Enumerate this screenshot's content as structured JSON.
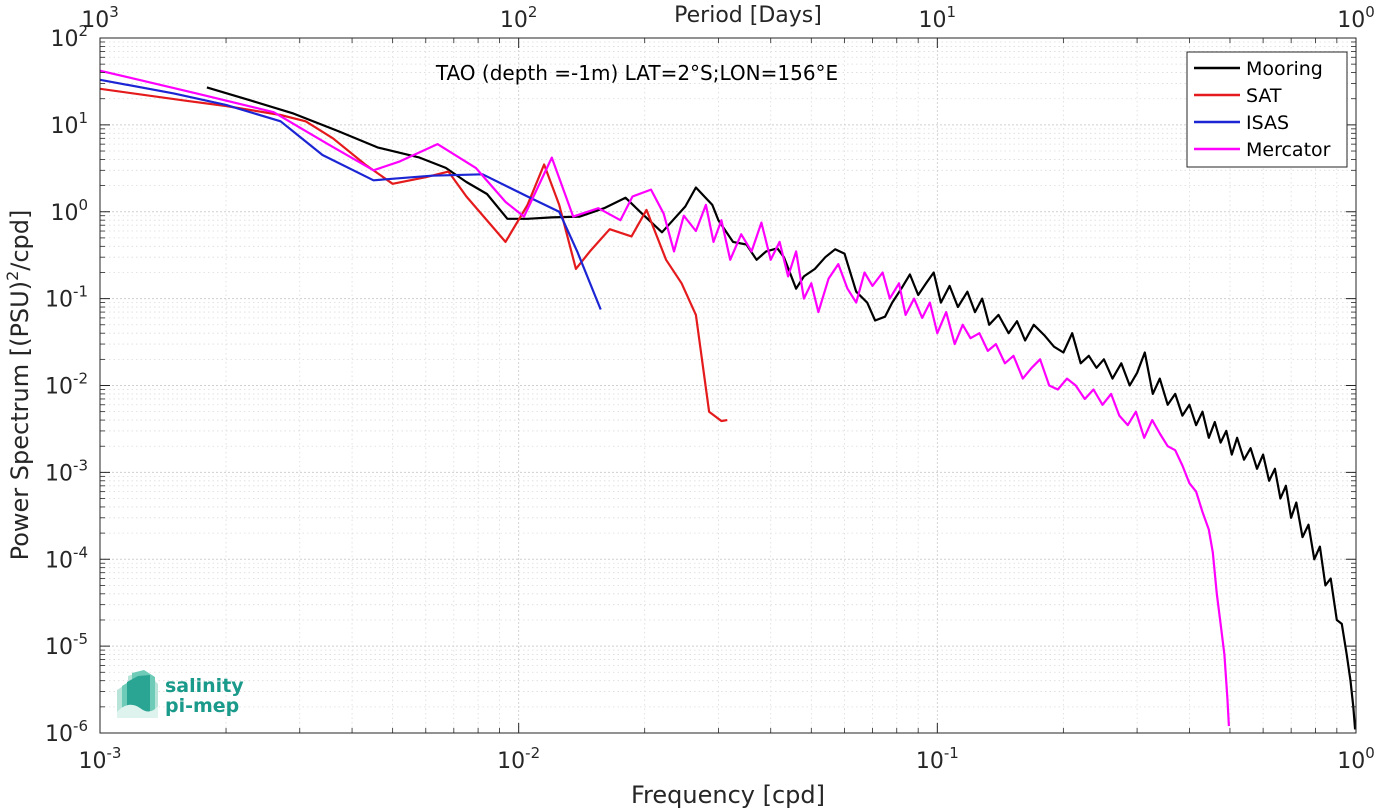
{
  "chart_data": {
    "type": "line",
    "title": "TAO (depth =-1m) LAT=2°S;LON=156°E",
    "xlabel": "Frequency [cpd]",
    "ylabel": "Power Spectrum [(PSU)^2/cpd]",
    "top_xlabel": "Period [Days]",
    "xscale": "log",
    "yscale": "log",
    "xlim": [
      0.001,
      1
    ],
    "ylim": [
      1e-06,
      100
    ],
    "x_ticks": [
      {
        "value": 0.001,
        "base": "10",
        "exp": "-3"
      },
      {
        "value": 0.01,
        "base": "10",
        "exp": "-2"
      },
      {
        "value": 0.1,
        "base": "10",
        "exp": "-1"
      },
      {
        "value": 1,
        "base": "10",
        "exp": "0"
      }
    ],
    "y_ticks": [
      {
        "value": 1e-06,
        "base": "10",
        "exp": "-6"
      },
      {
        "value": 1e-05,
        "base": "10",
        "exp": "-5"
      },
      {
        "value": 0.0001,
        "base": "10",
        "exp": "-4"
      },
      {
        "value": 0.001,
        "base": "10",
        "exp": "-3"
      },
      {
        "value": 0.01,
        "base": "10",
        "exp": "-2"
      },
      {
        "value": 0.1,
        "base": "10",
        "exp": "-1"
      },
      {
        "value": 1,
        "base": "10",
        "exp": "0"
      },
      {
        "value": 10,
        "base": "10",
        "exp": "1"
      },
      {
        "value": 100,
        "base": "10",
        "exp": "2"
      }
    ],
    "top_ticks": [
      {
        "freq": 0.001,
        "base": "10",
        "exp": "3"
      },
      {
        "freq": 0.01,
        "base": "10",
        "exp": "2"
      },
      {
        "freq": 0.1,
        "base": "10",
        "exp": "1"
      },
      {
        "freq": 1,
        "base": "10",
        "exp": "0"
      }
    ],
    "grid": true,
    "legend_position": "top-right",
    "series": [
      {
        "name": "Mooring",
        "color": "#000000",
        "points": [
          [
            0.0018,
            27
          ],
          [
            0.0023,
            19
          ],
          [
            0.0029,
            13.5
          ],
          [
            0.0037,
            8.5
          ],
          [
            0.0046,
            5.5
          ],
          [
            0.0058,
            4.2
          ],
          [
            0.0067,
            3.2
          ],
          [
            0.0075,
            2.2
          ],
          [
            0.0084,
            1.6
          ],
          [
            0.0094,
            0.83
          ],
          [
            0.0105,
            0.83
          ],
          [
            0.012,
            0.86
          ],
          [
            0.014,
            0.88
          ],
          [
            0.016,
            1.1
          ],
          [
            0.018,
            1.45
          ],
          [
            0.0195,
            1.0
          ],
          [
            0.022,
            0.58
          ],
          [
            0.025,
            1.15
          ],
          [
            0.0265,
            1.9
          ],
          [
            0.029,
            1.2
          ],
          [
            0.03,
            0.8
          ],
          [
            0.0325,
            0.45
          ],
          [
            0.035,
            0.42
          ],
          [
            0.037,
            0.28
          ],
          [
            0.039,
            0.35
          ],
          [
            0.0415,
            0.38
          ],
          [
            0.043,
            0.3
          ],
          [
            0.046,
            0.13
          ],
          [
            0.048,
            0.18
          ],
          [
            0.051,
            0.22
          ],
          [
            0.054,
            0.3
          ],
          [
            0.057,
            0.37
          ],
          [
            0.06,
            0.33
          ],
          [
            0.064,
            0.12
          ],
          [
            0.068,
            0.09
          ],
          [
            0.071,
            0.056
          ],
          [
            0.075,
            0.062
          ],
          [
            0.078,
            0.09
          ],
          [
            0.082,
            0.13
          ],
          [
            0.086,
            0.19
          ],
          [
            0.09,
            0.11
          ],
          [
            0.094,
            0.15
          ],
          [
            0.098,
            0.2
          ],
          [
            0.102,
            0.09
          ],
          [
            0.107,
            0.14
          ],
          [
            0.112,
            0.08
          ],
          [
            0.118,
            0.12
          ],
          [
            0.123,
            0.07
          ],
          [
            0.128,
            0.1
          ],
          [
            0.133,
            0.05
          ],
          [
            0.14,
            0.065
          ],
          [
            0.148,
            0.04
          ],
          [
            0.155,
            0.055
          ],
          [
            0.162,
            0.033
          ],
          [
            0.17,
            0.05
          ],
          [
            0.18,
            0.038
          ],
          [
            0.19,
            0.028
          ],
          [
            0.2,
            0.024
          ],
          [
            0.21,
            0.04
          ],
          [
            0.22,
            0.018
          ],
          [
            0.23,
            0.022
          ],
          [
            0.24,
            0.016
          ],
          [
            0.25,
            0.02
          ],
          [
            0.262,
            0.012
          ],
          [
            0.275,
            0.018
          ],
          [
            0.288,
            0.01
          ],
          [
            0.3,
            0.014
          ],
          [
            0.313,
            0.024
          ],
          [
            0.327,
            0.008
          ],
          [
            0.34,
            0.012
          ],
          [
            0.355,
            0.006
          ],
          [
            0.37,
            0.008
          ],
          [
            0.385,
            0.0045
          ],
          [
            0.4,
            0.006
          ],
          [
            0.415,
            0.0035
          ],
          [
            0.43,
            0.005
          ],
          [
            0.445,
            0.0025
          ],
          [
            0.46,
            0.0038
          ],
          [
            0.475,
            0.0022
          ],
          [
            0.49,
            0.003
          ],
          [
            0.505,
            0.0016
          ],
          [
            0.52,
            0.0025
          ],
          [
            0.54,
            0.0014
          ],
          [
            0.56,
            0.0019
          ],
          [
            0.58,
            0.0011
          ],
          [
            0.6,
            0.0016
          ],
          [
            0.62,
            0.0008
          ],
          [
            0.64,
            0.0011
          ],
          [
            0.66,
            0.0005
          ],
          [
            0.68,
            0.0007
          ],
          [
            0.7,
            0.0003
          ],
          [
            0.72,
            0.00045
          ],
          [
            0.745,
            0.00018
          ],
          [
            0.77,
            0.00025
          ],
          [
            0.795,
            0.0001
          ],
          [
            0.82,
            0.00014
          ],
          [
            0.845,
            5e-05
          ],
          [
            0.87,
            6e-05
          ],
          [
            0.9,
            2e-05
          ],
          [
            0.925,
            1.8e-05
          ],
          [
            0.95,
            8e-06
          ],
          [
            0.97,
            4e-06
          ],
          [
            0.985,
            2e-06
          ],
          [
            0.995,
            1.1e-06
          ]
        ]
      },
      {
        "name": "SAT",
        "color": "#e41a1c",
        "points": [
          [
            0.001,
            26
          ],
          [
            0.0016,
            19
          ],
          [
            0.002,
            16.5
          ],
          [
            0.0027,
            13
          ],
          [
            0.0031,
            11
          ],
          [
            0.0036,
            7
          ],
          [
            0.0043,
            3.5
          ],
          [
            0.005,
            2.1
          ],
          [
            0.006,
            2.5
          ],
          [
            0.0068,
            2.9
          ],
          [
            0.0075,
            1.5
          ],
          [
            0.0093,
            0.45
          ],
          [
            0.0105,
            1.2
          ],
          [
            0.0115,
            3.5
          ],
          [
            0.0125,
            1.2
          ],
          [
            0.0137,
            0.22
          ],
          [
            0.0148,
            0.35
          ],
          [
            0.0165,
            0.63
          ],
          [
            0.0186,
            0.52
          ],
          [
            0.0202,
            1.05
          ],
          [
            0.0225,
            0.28
          ],
          [
            0.0245,
            0.15
          ],
          [
            0.0265,
            0.065
          ],
          [
            0.0285,
            0.005
          ],
          [
            0.0305,
            0.0039
          ],
          [
            0.0315,
            0.004
          ]
        ]
      },
      {
        "name": "ISAS",
        "color": "#1c25d4",
        "points": [
          [
            0.001,
            33
          ],
          [
            0.0015,
            23
          ],
          [
            0.002,
            17
          ],
          [
            0.0027,
            11
          ],
          [
            0.0034,
            4.5
          ],
          [
            0.0045,
            2.3
          ],
          [
            0.0062,
            2.6
          ],
          [
            0.0082,
            2.7
          ],
          [
            0.0105,
            1.5
          ],
          [
            0.0125,
            1.0
          ],
          [
            0.0138,
            0.35
          ],
          [
            0.0152,
            0.11
          ],
          [
            0.0157,
            0.075
          ]
        ]
      },
      {
        "name": "Mercator",
        "color": "#ff00ff",
        "points": [
          [
            0.001,
            42
          ],
          [
            0.0017,
            23
          ],
          [
            0.0026,
            14
          ],
          [
            0.0035,
            6
          ],
          [
            0.0045,
            3.0
          ],
          [
            0.0052,
            3.8
          ],
          [
            0.0064,
            6.0
          ],
          [
            0.0079,
            3.2
          ],
          [
            0.0093,
            1.3
          ],
          [
            0.0103,
            0.88
          ],
          [
            0.012,
            4.2
          ],
          [
            0.0135,
            0.88
          ],
          [
            0.0155,
            1.1
          ],
          [
            0.0175,
            0.8
          ],
          [
            0.0187,
            1.5
          ],
          [
            0.0207,
            1.8
          ],
          [
            0.0222,
            0.95
          ],
          [
            0.0235,
            0.35
          ],
          [
            0.0248,
            0.9
          ],
          [
            0.0265,
            0.6
          ],
          [
            0.028,
            1.2
          ],
          [
            0.0292,
            0.45
          ],
          [
            0.0305,
            0.8
          ],
          [
            0.032,
            0.28
          ],
          [
            0.034,
            0.55
          ],
          [
            0.036,
            0.35
          ],
          [
            0.038,
            0.75
          ],
          [
            0.04,
            0.28
          ],
          [
            0.042,
            0.45
          ],
          [
            0.044,
            0.18
          ],
          [
            0.046,
            0.35
          ],
          [
            0.048,
            0.1
          ],
          [
            0.05,
            0.15
          ],
          [
            0.052,
            0.07
          ],
          [
            0.055,
            0.17
          ],
          [
            0.058,
            0.25
          ],
          [
            0.061,
            0.13
          ],
          [
            0.064,
            0.09
          ],
          [
            0.067,
            0.2
          ],
          [
            0.07,
            0.14
          ],
          [
            0.074,
            0.2
          ],
          [
            0.077,
            0.1
          ],
          [
            0.081,
            0.15
          ],
          [
            0.084,
            0.065
          ],
          [
            0.088,
            0.1
          ],
          [
            0.092,
            0.06
          ],
          [
            0.096,
            0.09
          ],
          [
            0.1,
            0.04
          ],
          [
            0.105,
            0.07
          ],
          [
            0.11,
            0.03
          ],
          [
            0.115,
            0.05
          ],
          [
            0.12,
            0.035
          ],
          [
            0.126,
            0.04
          ],
          [
            0.132,
            0.025
          ],
          [
            0.138,
            0.03
          ],
          [
            0.145,
            0.018
          ],
          [
            0.152,
            0.022
          ],
          [
            0.16,
            0.012
          ],
          [
            0.168,
            0.016
          ],
          [
            0.176,
            0.02
          ],
          [
            0.185,
            0.01
          ],
          [
            0.194,
            0.009
          ],
          [
            0.204,
            0.012
          ],
          [
            0.214,
            0.01
          ],
          [
            0.225,
            0.007
          ],
          [
            0.236,
            0.009
          ],
          [
            0.248,
            0.006
          ],
          [
            0.26,
            0.008
          ],
          [
            0.272,
            0.0045
          ],
          [
            0.285,
            0.0035
          ],
          [
            0.298,
            0.005
          ],
          [
            0.312,
            0.0025
          ],
          [
            0.326,
            0.004
          ],
          [
            0.34,
            0.0028
          ],
          [
            0.355,
            0.002
          ],
          [
            0.37,
            0.0018
          ],
          [
            0.385,
            0.0012
          ],
          [
            0.4,
            0.00075
          ],
          [
            0.415,
            0.0006
          ],
          [
            0.43,
            0.00035
          ],
          [
            0.445,
            0.00022
          ],
          [
            0.455,
            0.00012
          ],
          [
            0.465,
            4e-05
          ],
          [
            0.475,
            1.8e-05
          ],
          [
            0.485,
            8e-06
          ],
          [
            0.493,
            2.5e-06
          ],
          [
            0.497,
            1.2e-06
          ]
        ]
      }
    ]
  },
  "logo": {
    "line1": "salinity",
    "line2": "pi-mep"
  }
}
